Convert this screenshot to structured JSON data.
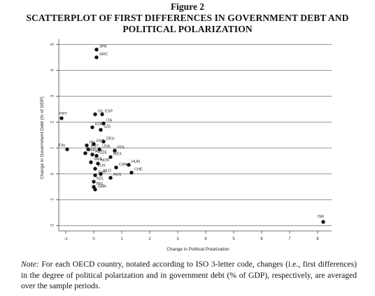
{
  "figure_label": "Figure 2",
  "title_lines": [
    "SCATTERPLOT OF FIRST DIFFERENCES IN GOVERNMENT DEBT AND",
    "POLITICAL POLARIZATION"
  ],
  "note": {
    "label": "Note:",
    "text": " For each OECD country, notated according to ISO 3-letter code, changes (i.e., first differences) in the degree of political polarization and in government debt (% of GDP), respectively, are averaged over the sample periods."
  },
  "chart_data": {
    "type": "scatter",
    "xlabel": "Change in Political Polarization",
    "ylabel": "Change in Government Debt (% of GDP)",
    "xlim": [
      -1.25,
      8.5
    ],
    "ylim": [
      -2.2,
      5.2
    ],
    "xticks": [
      "-1",
      "0",
      "1",
      "2",
      "3",
      "4",
      "5",
      "6",
      "7",
      "8"
    ],
    "yticks": [
      "-2",
      "-1",
      "0",
      "1",
      "2",
      "3",
      "4",
      "5"
    ],
    "grid": "horizontal",
    "points": [
      {
        "label": "JPN",
        "x": 0.1,
        "y": 4.8
      },
      {
        "label": "GRC",
        "x": 0.1,
        "y": 4.5
      },
      {
        "label": "PRT",
        "x": -1.15,
        "y": 2.15
      },
      {
        "label": "ISL",
        "x": 0.05,
        "y": 2.3
      },
      {
        "label": "ESP",
        "x": 0.3,
        "y": 2.3
      },
      {
        "label": "ITA",
        "x": 0.35,
        "y": 1.95
      },
      {
        "label": "KOR",
        "x": -0.05,
        "y": 1.8
      },
      {
        "label": "SZE",
        "x": 0.25,
        "y": 1.7
      },
      {
        "label": "DEU",
        "x": 0.35,
        "y": 1.25
      },
      {
        "label": "FRA",
        "x": 0.0,
        "y": 1.15
      },
      {
        "label": "IRL",
        "x": -0.25,
        "y": 1.1
      },
      {
        "label": "FIN",
        "x": -0.95,
        "y": 0.95
      },
      {
        "label": "EST",
        "x": -0.2,
        "y": 0.95
      },
      {
        "label": "USA",
        "x": 0.2,
        "y": 0.95
      },
      {
        "label": "POL",
        "x": 0.75,
        "y": 0.9
      },
      {
        "label": "DNK",
        "x": -0.3,
        "y": 0.8
      },
      {
        "label": "AUT",
        "x": -0.05,
        "y": 0.75
      },
      {
        "label": "CZE",
        "x": 0.1,
        "y": 0.7
      },
      {
        "label": "MEX",
        "x": 0.6,
        "y": 0.65
      },
      {
        "label": "SWE",
        "x": -0.1,
        "y": 0.45
      },
      {
        "label": "NOR",
        "x": 0.15,
        "y": 0.4
      },
      {
        "label": "HUN",
        "x": 1.25,
        "y": 0.35
      },
      {
        "label": "LUX",
        "x": 0.05,
        "y": 0.2
      },
      {
        "label": "CAN",
        "x": 0.8,
        "y": 0.25
      },
      {
        "label": "CHE",
        "x": 1.35,
        "y": 0.05
      },
      {
        "label": "TUR",
        "x": 0.05,
        "y": -0.05
      },
      {
        "label": "NLD",
        "x": 0.25,
        "y": 0.0
      },
      {
        "label": "AUS",
        "x": 0.6,
        "y": -0.15
      },
      {
        "label": "NZL",
        "x": 0.0,
        "y": -0.3
      },
      {
        "label": "BEL",
        "x": 0.0,
        "y": -0.5
      },
      {
        "label": "GBR",
        "x": 0.05,
        "y": -0.6
      },
      {
        "label": "ISR",
        "x": 8.2,
        "y": -1.85
      }
    ]
  }
}
